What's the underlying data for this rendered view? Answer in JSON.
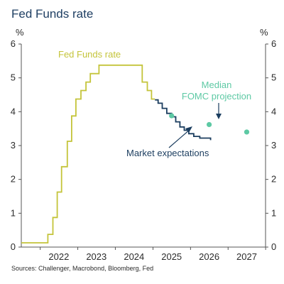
{
  "chart_data": {
    "type": "line",
    "title": "Fed Funds rate",
    "ylabel_left": "%",
    "ylabel_right": "%",
    "ylim": [
      0,
      6
    ],
    "yticks": [
      "0",
      "1",
      "2",
      "3",
      "4",
      "5",
      "6"
    ],
    "xlim": [
      "2021-07-01",
      "2027-12-31"
    ],
    "xticks": [
      "2022",
      "2023",
      "2024",
      "2025",
      "2026",
      "2027"
    ],
    "grid": false,
    "series": [
      {
        "name": "Fed Funds rate",
        "color": "#c4c43a",
        "style": "step",
        "points": [
          [
            "2021-07-01",
            0.125
          ],
          [
            "2022-03-16",
            0.375
          ],
          [
            "2022-05-04",
            0.875
          ],
          [
            "2022-06-15",
            1.625
          ],
          [
            "2022-07-27",
            2.375
          ],
          [
            "2022-09-21",
            3.125
          ],
          [
            "2022-11-02",
            3.875
          ],
          [
            "2022-12-14",
            4.375
          ],
          [
            "2023-02-01",
            4.625
          ],
          [
            "2023-03-22",
            4.875
          ],
          [
            "2023-05-03",
            5.125
          ],
          [
            "2023-07-26",
            5.375
          ],
          [
            "2024-09-18",
            4.875
          ],
          [
            "2024-11-07",
            4.625
          ],
          [
            "2024-12-18",
            4.375
          ],
          [
            "2025-01-20",
            4.375
          ]
        ]
      },
      {
        "name": "Market expectations",
        "color": "#1b3d5f",
        "style": "step",
        "points": [
          [
            "2025-01-20",
            4.35
          ],
          [
            "2025-02-20",
            4.25
          ],
          [
            "2025-04-01",
            4.1
          ],
          [
            "2025-05-15",
            3.95
          ],
          [
            "2025-07-01",
            3.85
          ],
          [
            "2025-08-10",
            3.7
          ],
          [
            "2025-09-20",
            3.55
          ],
          [
            "2025-11-01",
            3.45
          ],
          [
            "2025-12-15",
            3.35
          ],
          [
            "2026-02-01",
            3.27
          ],
          [
            "2026-04-01",
            3.22
          ],
          [
            "2026-07-15",
            3.16
          ]
        ]
      }
    ],
    "scatter": {
      "name": "Median FOMC projection",
      "color": "#5dc9a4",
      "points": [
        [
          "2025-07-01",
          3.88
        ],
        [
          "2026-07-01",
          3.62
        ],
        [
          "2027-07-01",
          3.4
        ]
      ]
    },
    "annotations": {
      "fed_funds_label": "Fed Funds rate",
      "market_label": "Market expectations",
      "fomc_label_line1": "Median",
      "fomc_label_line2": "FOMC projection"
    },
    "source": "Sources: Challenger, Macrobond, Bloomberg, Fed"
  }
}
